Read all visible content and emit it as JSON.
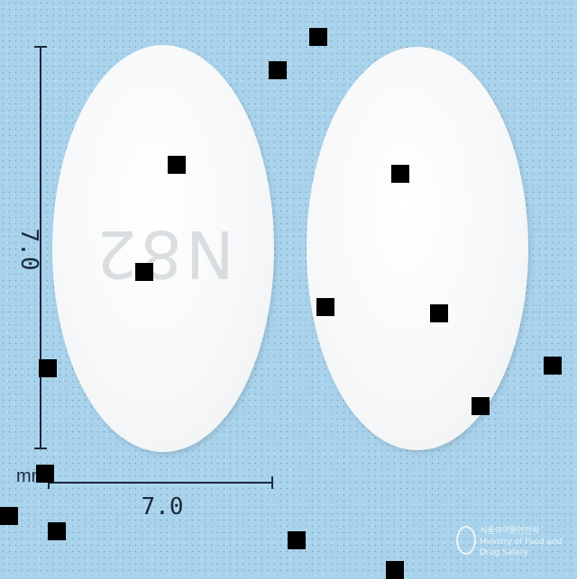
{
  "image": {
    "background_color": "#a9d3ec",
    "tablet_color": "#f4f6f7",
    "tablet_imprint_left": "N82",
    "tablet_imprint_right": ""
  },
  "scale": {
    "width_label": "7.0",
    "height_label": "7.0",
    "unit": "mm"
  },
  "watermark": {
    "line1": "식품의약품안전처",
    "line2": "Ministry of Food and Drug Safety"
  }
}
